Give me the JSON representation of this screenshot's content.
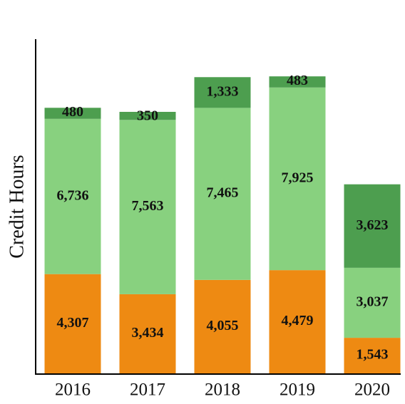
{
  "chart_data": {
    "type": "stacked-bar",
    "ylabel": "Credit Hours",
    "categories": [
      "2016",
      "2017",
      "2018",
      "2019",
      "2020"
    ],
    "ylim": [
      0,
      14500
    ],
    "series": [
      {
        "color": "#ee8a12",
        "values": [
          4307,
          3434,
          4055,
          4479,
          1543
        ],
        "value_labels": [
          "4,307",
          "3,434",
          "4,055",
          "4,479",
          "1,543"
        ]
      },
      {
        "color": "#88d17f",
        "values": [
          6736,
          7563,
          7465,
          7925,
          3037
        ],
        "value_labels": [
          "6,736",
          "7,563",
          "7,465",
          "7,925",
          "3,037"
        ]
      },
      {
        "color": "#4d9e4f",
        "values": [
          480,
          350,
          1333,
          483,
          3623
        ],
        "value_labels": [
          "480",
          "350",
          "1,333",
          "483",
          "3,623"
        ]
      }
    ]
  }
}
